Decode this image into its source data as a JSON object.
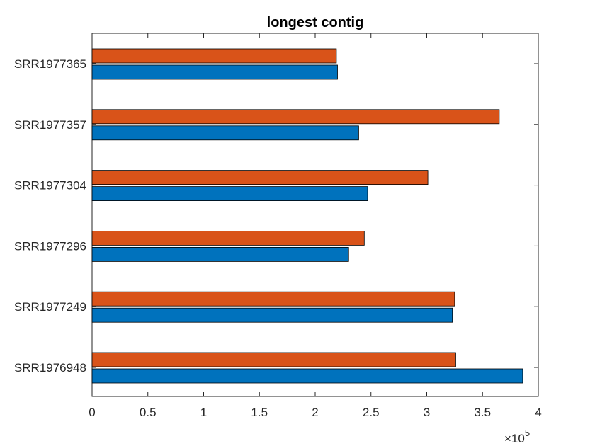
{
  "chart_data": {
    "type": "bar",
    "orientation": "horizontal",
    "title": "longest contig",
    "xlabel": "",
    "ylabel": "",
    "x_multiplier": "×10",
    "x_exponent": "5",
    "xlim": [
      0,
      4
    ],
    "x_ticks": [
      "0",
      "0.5",
      "1",
      "1.5",
      "2",
      "2.5",
      "3",
      "3.5",
      "4"
    ],
    "categories": [
      "SRR1977365",
      "SRR1977357",
      "SRR1977304",
      "SRR1977296",
      "SRR1977249",
      "SRR1976948"
    ],
    "series": [
      {
        "color": "#D95319",
        "values": [
          2.19,
          3.65,
          3.01,
          2.44,
          3.25,
          3.26
        ]
      },
      {
        "color": "#0072BD",
        "values": [
          2.2,
          2.39,
          2.47,
          2.3,
          3.23,
          3.86
        ]
      }
    ],
    "grid": false,
    "legend": "none"
  }
}
